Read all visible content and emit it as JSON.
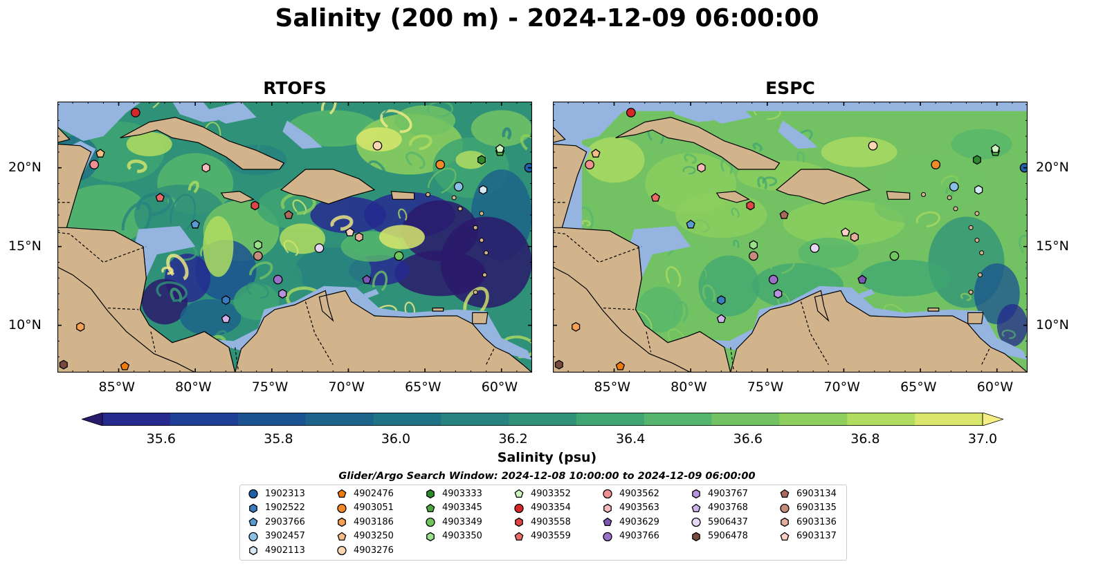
{
  "title": "Salinity (200 m) - 2024-12-09 06:00:00",
  "panels": [
    {
      "title": "RTOFS",
      "mode": "rtofs"
    },
    {
      "title": "ESPC",
      "mode": "espc"
    }
  ],
  "axes": {
    "x_labels": [
      "85°W",
      "80°W",
      "75°W",
      "70°W",
      "65°W",
      "60°W"
    ],
    "y_labels": [
      "20°N",
      "15°N",
      "10°N"
    ],
    "lon_range": [
      -89,
      -58
    ],
    "lat_range": [
      7,
      24.2
    ]
  },
  "colorbar": {
    "label": "Salinity (psu)",
    "min": 35.5,
    "max": 37.0,
    "ticks": [
      "35.6",
      "35.8",
      "36.0",
      "36.2",
      "36.4",
      "36.6",
      "36.8",
      "37.0"
    ],
    "colors": [
      "#2a1a6b",
      "#262a8f",
      "#1f3f96",
      "#1b5290",
      "#1c6389",
      "#207384",
      "#27837f",
      "#2f9278",
      "#3fa572",
      "#56b56c",
      "#72c264",
      "#8ecf5d",
      "#b0dc60",
      "#d8e66c",
      "#f6ee85"
    ],
    "land_color": "#d2b48c",
    "shelf_color": "#95b4e0"
  },
  "search_window": "Glider/Argo Search Window: 2024-12-08 10:00:00 to 2024-12-09 06:00:00",
  "platforms": [
    {
      "id": "1902313",
      "marker": "circle",
      "color": "#1f5fa8",
      "lon": -58.2,
      "lat": 20.0
    },
    {
      "id": "1902522",
      "marker": "hexagon",
      "color": "#3a7cc0",
      "lon": -78,
      "lat": 11.6
    },
    {
      "id": "2903766",
      "marker": "pentagon",
      "color": "#5a9ad5",
      "lon": -80.0,
      "lat": 16.4
    },
    {
      "id": "3902457",
      "marker": "circle",
      "color": "#8cbfe6",
      "lon": -62.8,
      "lat": 18.8
    },
    {
      "id": "4902113",
      "marker": "hexagon",
      "color": "#d6e9f7",
      "lon": -61.2,
      "lat": 18.6
    },
    {
      "id": "4902476",
      "marker": "pentagon",
      "color": "#f07a0a",
      "lon": -84.6,
      "lat": 7.4
    },
    {
      "id": "4903051",
      "marker": "circle",
      "color": "#f28a2a",
      "lon": -64.0,
      "lat": 20.2
    },
    {
      "id": "4903186",
      "marker": "hexagon",
      "color": "#f5a052",
      "lon": -87.5,
      "lat": 9.9
    },
    {
      "id": "4903250",
      "marker": "pentagon",
      "color": "#f8bc85",
      "lon": -86.2,
      "lat": 20.9
    },
    {
      "id": "4903276",
      "marker": "circle",
      "color": "#fbd6b0",
      "lon": -68.1,
      "lat": 21.4
    },
    {
      "id": "4903333",
      "marker": "hexagon",
      "color": "#2c8a2c",
      "lon": -61.3,
      "lat": 20.5
    },
    {
      "id": "4903345",
      "marker": "pentagon",
      "color": "#4aa83d",
      "lon": -60.1,
      "lat": 21.0
    },
    {
      "id": "4903349",
      "marker": "circle",
      "color": "#6ec65c",
      "lon": -66.7,
      "lat": 14.4
    },
    {
      "id": "4903350",
      "marker": "hexagon",
      "color": "#9be08a",
      "lon": -75.9,
      "lat": 15.1
    },
    {
      "id": "4903352",
      "marker": "pentagon",
      "color": "#cdf5c0",
      "lon": -60.1,
      "lat": 21.2
    },
    {
      "id": "4903354",
      "marker": "circle",
      "color": "#d62728",
      "lon": -83.9,
      "lat": 23.5
    },
    {
      "id": "4903558",
      "marker": "hexagon",
      "color": "#e04545",
      "lon": -76.1,
      "lat": 17.6
    },
    {
      "id": "4903559",
      "marker": "pentagon",
      "color": "#ec6a6a",
      "lon": -82.3,
      "lat": 18.1
    },
    {
      "id": "4903562",
      "marker": "circle",
      "color": "#f09090",
      "lon": -86.6,
      "lat": 20.2
    },
    {
      "id": "4903563",
      "marker": "hexagon",
      "color": "#f7b9b9",
      "lon": -79.3,
      "lat": 20.0
    },
    {
      "id": "4903629",
      "marker": "pentagon",
      "color": "#7d55b5",
      "lon": -68.8,
      "lat": 12.9
    },
    {
      "id": "4903766",
      "marker": "circle",
      "color": "#9a70c8",
      "lon": -74.6,
      "lat": 12.9
    },
    {
      "id": "4903767",
      "marker": "hexagon",
      "color": "#b893dd",
      "lon": -74.3,
      "lat": 12.0
    },
    {
      "id": "4903768",
      "marker": "pentagon",
      "color": "#cfb2ea",
      "lon": -78.0,
      "lat": 10.4
    },
    {
      "id": "5906437",
      "marker": "circle",
      "color": "#e8d6f6",
      "lon": -71.9,
      "lat": 14.9
    },
    {
      "id": "5906478",
      "marker": "hexagon",
      "color": "#7a4a3e",
      "lon": -88.6,
      "lat": 7.5
    },
    {
      "id": "6903134",
      "marker": "pentagon",
      "color": "#a96a5c",
      "lon": -73.9,
      "lat": 17.0
    },
    {
      "id": "6903135",
      "marker": "circle",
      "color": "#c58c7e",
      "lon": -75.9,
      "lat": 14.4
    },
    {
      "id": "6903136",
      "marker": "hexagon",
      "color": "#e6ae9c",
      "lon": -69.3,
      "lat": 15.6
    },
    {
      "id": "6903137",
      "marker": "pentagon",
      "color": "#f9d2c3",
      "lon": -69.9,
      "lat": 15.9
    }
  ]
}
